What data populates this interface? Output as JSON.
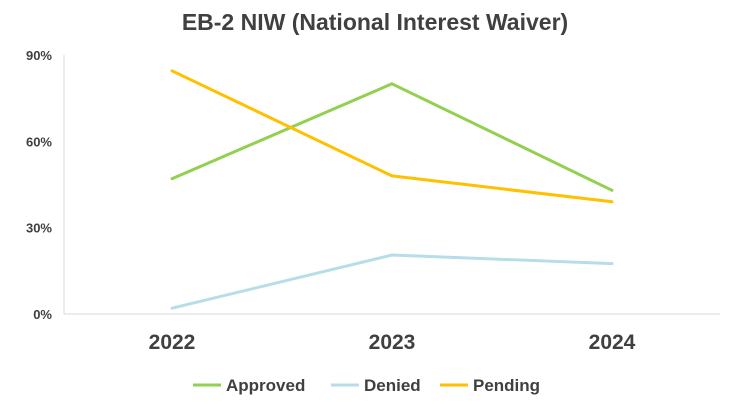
{
  "chart_data": {
    "type": "line",
    "title": "EB-2 NIW (National Interest Waiver)",
    "xlabel": "",
    "ylabel": "",
    "categories": [
      "2022",
      "2023",
      "2024"
    ],
    "series": [
      {
        "name": "Approved",
        "values": [
          47,
          80,
          43
        ],
        "color": "#92d050"
      },
      {
        "name": "Denied",
        "values": [
          2,
          20.5,
          17.5
        ],
        "color": "#b7dee8"
      },
      {
        "name": "Pending",
        "values": [
          84.5,
          48,
          39
        ],
        "color": "#ffc000"
      }
    ],
    "ylim": [
      0,
      90
    ],
    "yticks": [
      0,
      30,
      60,
      90
    ],
    "ytick_labels": [
      "0%",
      "30%",
      "60%",
      "90%"
    ],
    "grid": false,
    "legend_position": "bottom"
  }
}
